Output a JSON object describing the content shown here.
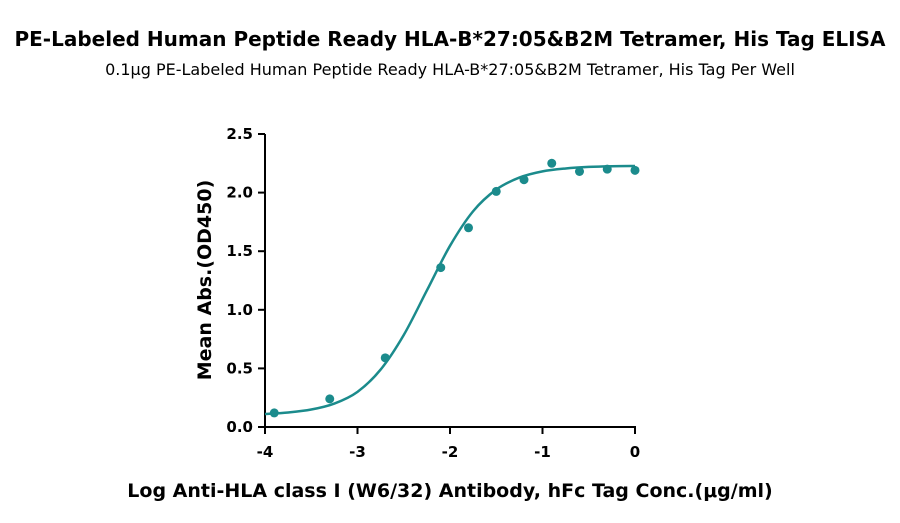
{
  "chart_data": {
    "type": "scatter",
    "title": "PE-Labeled Human Peptide Ready HLA-B*27:05&B2M Tetramer, His Tag ELISA",
    "subtitle": "0.1μg PE-Labeled Human Peptide Ready HLA-B*27:05&B2M Tetramer, His Tag Per Well",
    "x_label": "Log Anti-HLA class I (W6/32) Antibody, hFc Tag Conc.(μg/ml)",
    "y_label": "Mean Abs.(OD450)",
    "color": "#1b8b8c",
    "x": [
      -3.9,
      -3.3,
      -2.7,
      -2.1,
      -1.8,
      -1.5,
      -1.2,
      -0.9,
      -0.6,
      -0.3,
      0
    ],
    "values": [
      0.12,
      0.24,
      0.59,
      1.36,
      1.7,
      2.01,
      2.11,
      2.25,
      2.18,
      2.2,
      2.19
    ],
    "curve": {
      "x": [
        -4,
        -3.75,
        -3.5,
        -3.25,
        -3,
        -2.75,
        -2.5,
        -2.25,
        -2,
        -1.75,
        -1.5,
        -1.25,
        -1,
        -0.75,
        -0.5,
        -0.25,
        0
      ],
      "values": [
        0.111,
        0.124,
        0.149,
        0.2,
        0.3,
        0.49,
        0.785,
        1.165,
        1.546,
        1.841,
        2.026,
        2.128,
        2.181,
        2.206,
        2.219,
        2.225,
        2.227
      ]
    },
    "xlim": [
      -4,
      0
    ],
    "xticks": [
      -4,
      -3,
      -2,
      -1,
      0
    ],
    "ylim": [
      0,
      2.5
    ],
    "yticks": [
      {
        "value": 0,
        "label": "0.0"
      },
      {
        "value": 0.5,
        "label": "0.5"
      },
      {
        "value": 1,
        "label": "1.0"
      },
      {
        "value": 1.5,
        "label": "1.5"
      },
      {
        "value": 2,
        "label": "2.0"
      },
      {
        "value": 2.5,
        "label": "2.5"
      }
    ]
  }
}
